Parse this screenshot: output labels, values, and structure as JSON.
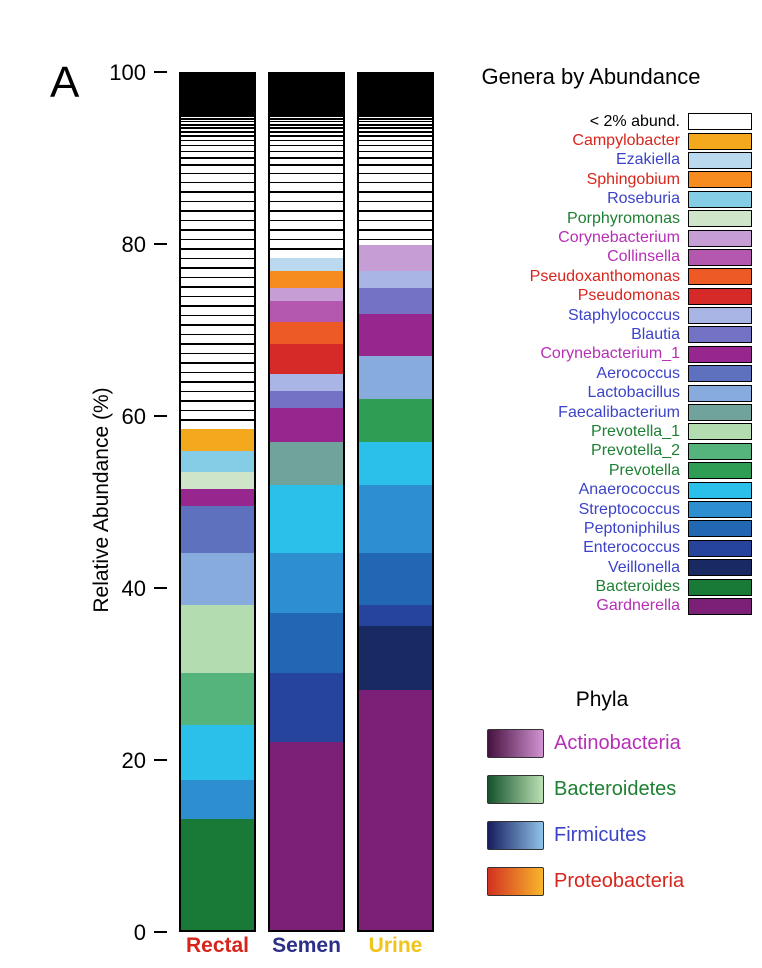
{
  "panel_label": "A",
  "axis": {
    "y_label": "Relative Abundance (%)",
    "y_ticks": [
      0,
      20,
      40,
      60,
      80,
      100
    ],
    "y_min": 0,
    "y_max": 100
  },
  "x_categories": [
    {
      "label": "Rectal",
      "color": "#d8251c"
    },
    {
      "label": "Semen",
      "color": "#2b3086"
    },
    {
      "label": "Urine",
      "color": "#f0c41b"
    }
  ],
  "legend": {
    "title": "Genera by Abundance",
    "items": [
      {
        "label": "< 2% abund.",
        "text_color": "#000000",
        "swatch_color": "#ffffff"
      },
      {
        "label": "Campylobacter",
        "text_color": "#d8251c",
        "swatch_color": "#f4a81d"
      },
      {
        "label": "Ezakiella",
        "text_color": "#3c43c8",
        "swatch_color": "#bad9ee"
      },
      {
        "label": "Sphingobium",
        "text_color": "#d8251c",
        "swatch_color": "#f68b1f"
      },
      {
        "label": "Roseburia",
        "text_color": "#3c43c8",
        "swatch_color": "#85cde6"
      },
      {
        "label": "Porphyromonas",
        "text_color": "#1e8032",
        "swatch_color": "#cfe5ca"
      },
      {
        "label": "Corynebacterium",
        "text_color": "#b62fb6",
        "swatch_color": "#c69dd5"
      },
      {
        "label": "Collinsella",
        "text_color": "#b62fb6",
        "swatch_color": "#b457ae"
      },
      {
        "label": "Pseudoxanthomonas",
        "text_color": "#d8251c",
        "swatch_color": "#ee5a26"
      },
      {
        "label": "Pseudomonas",
        "text_color": "#d8251c",
        "swatch_color": "#d62a28"
      },
      {
        "label": "Staphylococcus",
        "text_color": "#3c43c8",
        "swatch_color": "#a9b5e5"
      },
      {
        "label": "Blautia",
        "text_color": "#3c43c8",
        "swatch_color": "#7372c5"
      },
      {
        "label": "Corynebacterium_1",
        "text_color": "#b62fb6",
        "swatch_color": "#97268e"
      },
      {
        "label": "Aerococcus",
        "text_color": "#3c43c8",
        "swatch_color": "#5d71bf"
      },
      {
        "label": "Lactobacillus",
        "text_color": "#3c43c8",
        "swatch_color": "#87abdc"
      },
      {
        "label": "Faecalibacterium",
        "text_color": "#3c43c8",
        "swatch_color": "#6fa39c"
      },
      {
        "label": "Prevotella_1",
        "text_color": "#1e8032",
        "swatch_color": "#b3dcb1"
      },
      {
        "label": "Prevotella_2",
        "text_color": "#1e8032",
        "swatch_color": "#55b47b"
      },
      {
        "label": "Prevotella",
        "text_color": "#1e8032",
        "swatch_color": "#2d9e53"
      },
      {
        "label": "Anaerococcus",
        "text_color": "#3c43c8",
        "swatch_color": "#2bc0ea"
      },
      {
        "label": "Streptococcus",
        "text_color": "#3c43c8",
        "swatch_color": "#2e8fd0"
      },
      {
        "label": "Peptoniphilus",
        "text_color": "#3c43c8",
        "swatch_color": "#2267b1"
      },
      {
        "label": "Enterococcus",
        "text_color": "#3c43c8",
        "swatch_color": "#27449d"
      },
      {
        "label": "Veillonella",
        "text_color": "#3c43c8",
        "swatch_color": "#192a62"
      },
      {
        "label": "Bacteroides",
        "text_color": "#1e8032",
        "swatch_color": "#197a37"
      },
      {
        "label": "Gardnerella",
        "text_color": "#b62fb6",
        "swatch_color": "#7b2076"
      }
    ]
  },
  "phyla": {
    "title": "Phyla",
    "items": [
      {
        "label": "Actinobacteria",
        "text_color": "#b62fb6",
        "gradient": [
          "#45123f",
          "#d293d2"
        ]
      },
      {
        "label": "Bacteroidetes",
        "text_color": "#1e8032",
        "gradient": [
          "#14522c",
          "#bce0b4"
        ]
      },
      {
        "label": "Firmicutes",
        "text_color": "#3c43c8",
        "gradient": [
          "#161d5e",
          "#8fc3ea"
        ]
      },
      {
        "label": "Proteobacteria",
        "text_color": "#d8251c",
        "gradient": [
          "#d23221",
          "#f8b62b"
        ]
      }
    ]
  },
  "chart_data": {
    "type": "stacked-bar",
    "title": "Genera by Abundance",
    "ylabel": "Relative Abundance (%)",
    "ylim": [
      0,
      100
    ],
    "categories": [
      "Rectal",
      "Semen",
      "Urine"
    ],
    "stack_order": "bottom_to_top",
    "series": [
      {
        "name": "Gardnerella",
        "values": [
          0,
          22,
          28
        ]
      },
      {
        "name": "Bacteroides",
        "values": [
          13,
          0,
          0
        ]
      },
      {
        "name": "Veillonella",
        "values": [
          0,
          0,
          7.5
        ]
      },
      {
        "name": "Enterococcus",
        "values": [
          0,
          8,
          2.5
        ]
      },
      {
        "name": "Peptoniphilus",
        "values": [
          0,
          7,
          6
        ]
      },
      {
        "name": "Streptococcus",
        "values": [
          4.5,
          7,
          8
        ]
      },
      {
        "name": "Anaerococcus",
        "values": [
          6.5,
          8,
          5
        ]
      },
      {
        "name": "Prevotella",
        "values": [
          0,
          0,
          5
        ]
      },
      {
        "name": "Prevotella_2",
        "values": [
          6,
          0,
          0
        ]
      },
      {
        "name": "Prevotella_1",
        "values": [
          8,
          0,
          0
        ]
      },
      {
        "name": "Faecalibacterium",
        "values": [
          0,
          5,
          0
        ]
      },
      {
        "name": "Lactobacillus",
        "values": [
          6,
          0,
          5
        ]
      },
      {
        "name": "Aerococcus",
        "values": [
          5.5,
          0,
          0
        ]
      },
      {
        "name": "Corynebacterium_1",
        "values": [
          2,
          4,
          5
        ]
      },
      {
        "name": "Blautia",
        "values": [
          0,
          2,
          3
        ]
      },
      {
        "name": "Staphylococcus",
        "values": [
          0,
          2,
          2
        ]
      },
      {
        "name": "Pseudomonas",
        "values": [
          0,
          3.5,
          0
        ]
      },
      {
        "name": "Pseudoxanthomonas",
        "values": [
          0,
          2.5,
          0
        ]
      },
      {
        "name": "Collinsella",
        "values": [
          0,
          2.5,
          0
        ]
      },
      {
        "name": "Corynebacterium",
        "values": [
          0,
          1.5,
          3
        ]
      },
      {
        "name": "Porphyromonas",
        "values": [
          2,
          0,
          0
        ]
      },
      {
        "name": "Roseburia",
        "values": [
          2.5,
          0,
          0
        ]
      },
      {
        "name": "Sphingobium",
        "values": [
          0,
          2,
          0
        ]
      },
      {
        "name": "Ezakiella",
        "values": [
          0,
          1.5,
          0
        ]
      },
      {
        "name": "Campylobacter",
        "values": [
          2.5,
          0,
          0
        ]
      },
      {
        "name": "< 2% abund.",
        "values": [
          41.5,
          21.5,
          20
        ],
        "pattern": {
          "type": "horizontal-black-lines-densifying-upward",
          "solid_black_top_percent": 5
        }
      }
    ]
  }
}
